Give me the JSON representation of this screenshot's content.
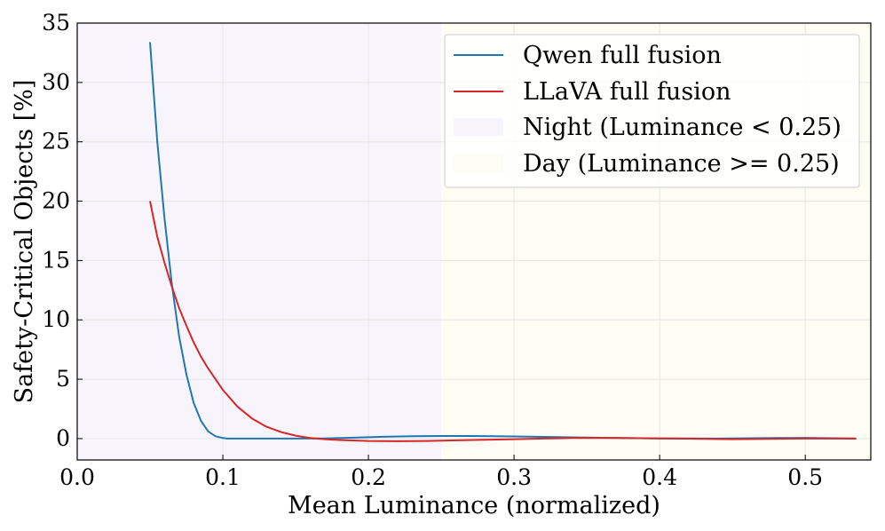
{
  "chart_data": {
    "type": "line",
    "title": "",
    "xlabel": "Mean Luminance (normalized)",
    "ylabel": "Safety-Critical Objects [%]",
    "xlim": [
      0.0,
      0.545
    ],
    "ylim": [
      -1.8,
      35
    ],
    "xticks": [
      0.0,
      0.1,
      0.2,
      0.3,
      0.4,
      0.5
    ],
    "xtick_labels": [
      "0.0",
      "0.1",
      "0.2",
      "0.3",
      "0.4",
      "0.5"
    ],
    "yticks": [
      0,
      5,
      10,
      15,
      20,
      25,
      30,
      35
    ],
    "ytick_labels": [
      "0",
      "5",
      "10",
      "15",
      "20",
      "25",
      "30",
      "35"
    ],
    "grid": true,
    "legend_position": "top-right",
    "regions": [
      {
        "name": "Night (Luminance < 0.25)",
        "x0": 0.0,
        "x1": 0.25,
        "color": "#f7f5fb"
      },
      {
        "name": "Day (Luminance >= 0.25)",
        "x0": 0.25,
        "x1": 0.545,
        "color": "#fdfdf4"
      }
    ],
    "series": [
      {
        "name": "Qwen full fusion",
        "color": "#1f77b4",
        "x": [
          0.05,
          0.055,
          0.06,
          0.065,
          0.07,
          0.075,
          0.08,
          0.085,
          0.09,
          0.095,
          0.1,
          0.103,
          0.11,
          0.13,
          0.15,
          0.17,
          0.19,
          0.21,
          0.23,
          0.25,
          0.27,
          0.3,
          0.33,
          0.36,
          0.4,
          0.44,
          0.48,
          0.5,
          0.535
        ],
        "y": [
          33.4,
          25.0,
          18.5,
          13.0,
          8.6,
          5.4,
          3.0,
          1.5,
          0.6,
          0.2,
          0.05,
          0.0,
          0.0,
          0.0,
          0.0,
          0.02,
          0.08,
          0.15,
          0.2,
          0.22,
          0.22,
          0.18,
          0.12,
          0.07,
          0.02,
          0.0,
          0.05,
          0.06,
          0.0
        ]
      },
      {
        "name": "LLaVA full fusion",
        "color": "#d62728",
        "x": [
          0.05,
          0.055,
          0.06,
          0.065,
          0.07,
          0.075,
          0.08,
          0.085,
          0.09,
          0.095,
          0.1,
          0.11,
          0.12,
          0.13,
          0.14,
          0.15,
          0.16,
          0.17,
          0.18,
          0.2,
          0.22,
          0.24,
          0.26,
          0.28,
          0.3,
          0.32,
          0.34,
          0.37,
          0.4,
          0.45,
          0.5,
          0.535
        ],
        "y": [
          20.0,
          17.0,
          14.8,
          12.8,
          11.0,
          9.5,
          8.1,
          6.9,
          5.9,
          5.0,
          4.1,
          2.7,
          1.7,
          1.0,
          0.55,
          0.25,
          0.05,
          -0.05,
          -0.12,
          -0.2,
          -0.22,
          -0.2,
          -0.15,
          -0.1,
          -0.05,
          0.0,
          0.05,
          0.05,
          0.02,
          -0.05,
          0.0,
          0.0
        ]
      }
    ]
  }
}
